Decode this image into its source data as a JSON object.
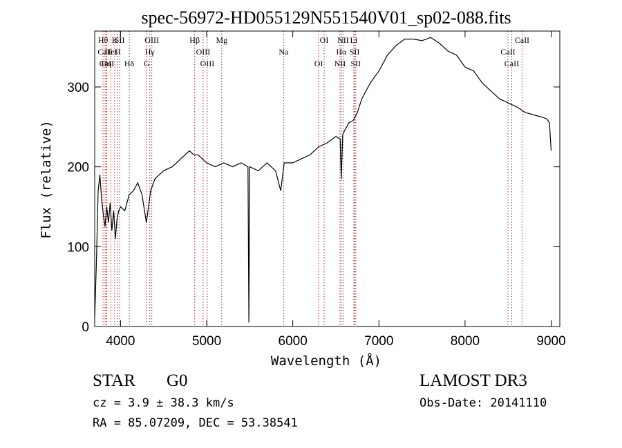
{
  "chart_data": {
    "type": "line",
    "title": "spec-56972-HD055129N551540V01_sp02-088.fits",
    "xlabel": "Wavelength (Å)",
    "ylabel": "Flux (relative)",
    "xlim": [
      3700,
      9100
    ],
    "ylim": [
      0,
      370
    ],
    "xticks": [
      4000,
      5000,
      6000,
      7000,
      8000,
      9000
    ],
    "yticks": [
      0,
      100,
      200,
      300
    ],
    "series": [
      {
        "name": "flux",
        "color": "#000000",
        "x": [
          3700,
          3720,
          3740,
          3760,
          3780,
          3800,
          3820,
          3840,
          3860,
          3880,
          3900,
          3920,
          3940,
          3960,
          3980,
          4000,
          4050,
          4100,
          4150,
          4200,
          4250,
          4300,
          4350,
          4400,
          4500,
          4600,
          4700,
          4800,
          4850,
          4900,
          5000,
          5100,
          5200,
          5300,
          5400,
          5480,
          5490,
          5500,
          5600,
          5700,
          5800,
          5860,
          5900,
          6000,
          6100,
          6200,
          6300,
          6400,
          6500,
          6550,
          6563,
          6580,
          6600,
          6650,
          6700,
          6750,
          6800,
          6900,
          7000,
          7100,
          7200,
          7300,
          7400,
          7500,
          7600,
          7700,
          7800,
          7900,
          8000,
          8100,
          8200,
          8300,
          8400,
          8500,
          8600,
          8700,
          8800,
          8900,
          8950,
          8980,
          9000
        ],
        "y": [
          10,
          80,
          170,
          190,
          160,
          140,
          125,
          150,
          130,
          155,
          120,
          145,
          110,
          135,
          145,
          150,
          145,
          165,
          170,
          180,
          165,
          130,
          170,
          185,
          195,
          200,
          210,
          220,
          215,
          215,
          205,
          200,
          205,
          200,
          205,
          200,
          5,
          200,
          195,
          205,
          195,
          170,
          205,
          205,
          210,
          215,
          225,
          230,
          238,
          235,
          185,
          240,
          245,
          255,
          258,
          268,
          285,
          305,
          320,
          340,
          352,
          360,
          360,
          358,
          362,
          355,
          345,
          340,
          325,
          320,
          305,
          295,
          285,
          280,
          275,
          268,
          265,
          262,
          260,
          255,
          220
        ]
      }
    ],
    "lines": [
      {
        "label": "Hθ",
        "x": 3797
      },
      {
        "label": "CaII",
        "x": 3820
      },
      {
        "label": "CaII",
        "x": 3840
      },
      {
        "label": "K",
        "x": 3933
      },
      {
        "label": "HeI",
        "x": 3889
      },
      {
        "label": "Hη",
        "x": 3835
      },
      {
        "label": "SII",
        "x": 3990
      },
      {
        "label": "H",
        "x": 3968
      },
      {
        "label": "Hδ",
        "x": 4102
      },
      {
        "label": "OIII",
        "x": 4363
      },
      {
        "label": "Hγ",
        "x": 4340
      },
      {
        "label": "G",
        "x": 4304
      },
      {
        "label": "Hβ",
        "x": 4861
      },
      {
        "label": "OIII",
        "x": 4959
      },
      {
        "label": "OIII",
        "x": 5007
      },
      {
        "label": "Mg",
        "x": 5175
      },
      {
        "label": "Na",
        "x": 5893
      },
      {
        "label": "OI",
        "x": 6300
      },
      {
        "label": "OI",
        "x": 6364
      },
      {
        "label": "Hα",
        "x": 6563
      },
      {
        "label": "NII",
        "x": 6548
      },
      {
        "label": "NII",
        "x": 6584
      },
      {
        "label": "SII",
        "x": 6717
      },
      {
        "label": "SII",
        "x": 6731
      },
      {
        "label": "Li",
        "x": 6708
      },
      {
        "label": "CaII",
        "x": 8498
      },
      {
        "label": "CaII",
        "x": 8542
      },
      {
        "label": "CaII",
        "x": 8662
      }
    ]
  },
  "info": {
    "object_class": "STAR",
    "subclass": "G0",
    "redshift": "cz = 3.9 ± 38.3 km/s",
    "coords": "RA =  85.07209, DEC =  53.38541",
    "survey": "LAMOST DR3",
    "obs_date": "Obs-Date: 20141110"
  }
}
